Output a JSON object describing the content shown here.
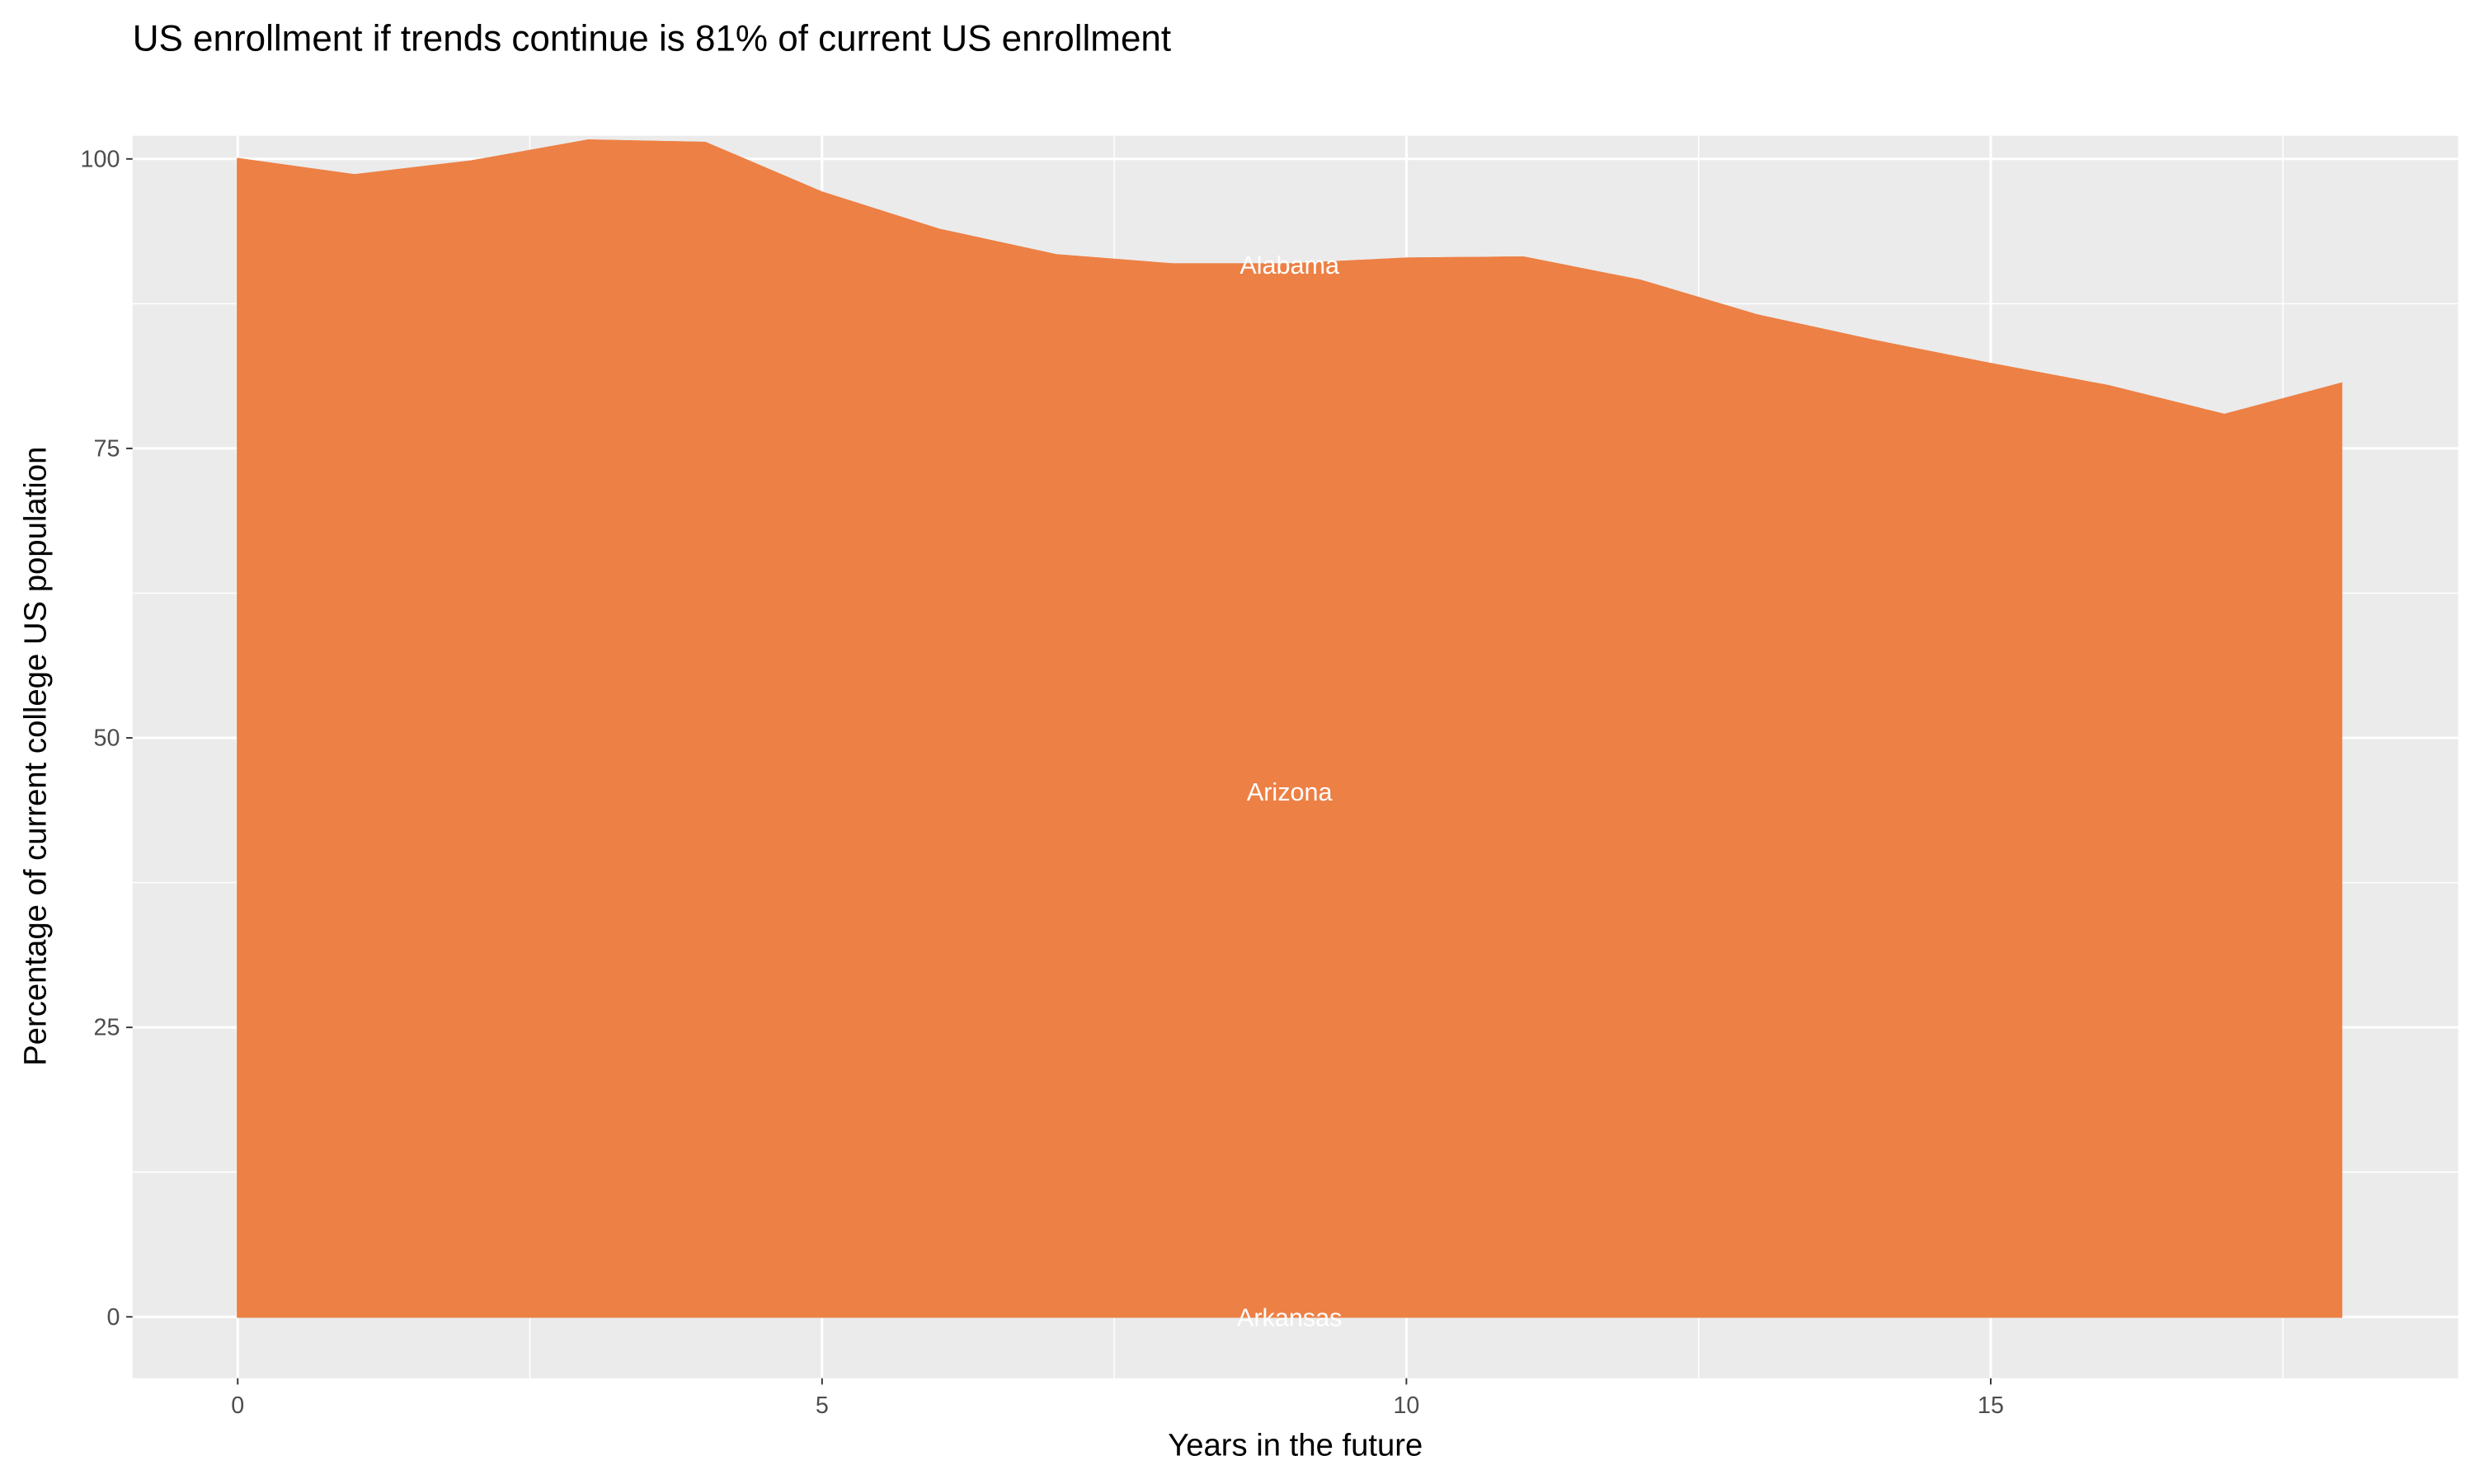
{
  "chart_data": {
    "type": "area",
    "stacked": true,
    "title": "US enrollment if trends continue is 81% of current US enrollment",
    "xlabel": "Years in the future",
    "ylabel": "Percentage of current college US population",
    "xlim": [
      -0.9,
      19
    ],
    "ylim": [
      -5.3,
      102
    ],
    "x_ticks": [
      0,
      5,
      10,
      15
    ],
    "y_ticks": [
      0,
      25,
      50,
      75,
      100
    ],
    "grid": true,
    "legend": "none",
    "x": [
      0,
      1,
      2,
      3,
      4,
      5,
      6,
      7,
      8,
      9,
      10,
      11,
      12,
      13,
      14,
      15,
      16,
      17,
      18
    ],
    "series": [
      {
        "name": "Arkansas",
        "color": "#66C2A5",
        "values": [
          0,
          0,
          0,
          0,
          0,
          0,
          0,
          0,
          0,
          0,
          0,
          0,
          0,
          0,
          0,
          0,
          0,
          0,
          0
        ]
      },
      {
        "name": "Arizona",
        "color": "#ED8045",
        "values": [
          100,
          98.6,
          99.8,
          101.6,
          101.4,
          97.1,
          93.9,
          91.7,
          90.9,
          90.9,
          91.4,
          91.5,
          89.5,
          86.5,
          84.3,
          82.3,
          80.4,
          77.9,
          80.6
        ]
      },
      {
        "name": "Alabama",
        "color": "#ED8045",
        "values": [
          0,
          0,
          0,
          0,
          0,
          0,
          0,
          0,
          0,
          0,
          0,
          0,
          0,
          0,
          0,
          0,
          0,
          0,
          0
        ]
      }
    ],
    "annotations": [
      {
        "text": "Alabama",
        "x": 9,
        "y": 90.9
      },
      {
        "text": "Arizona",
        "x": 9,
        "y": 45.4
      },
      {
        "text": "Arkansas",
        "x": 9,
        "y": 0
      }
    ],
    "colors": {
      "panel": "#EBEBEB",
      "grid": "#FFFFFF",
      "label": "#FFFFFF"
    }
  }
}
